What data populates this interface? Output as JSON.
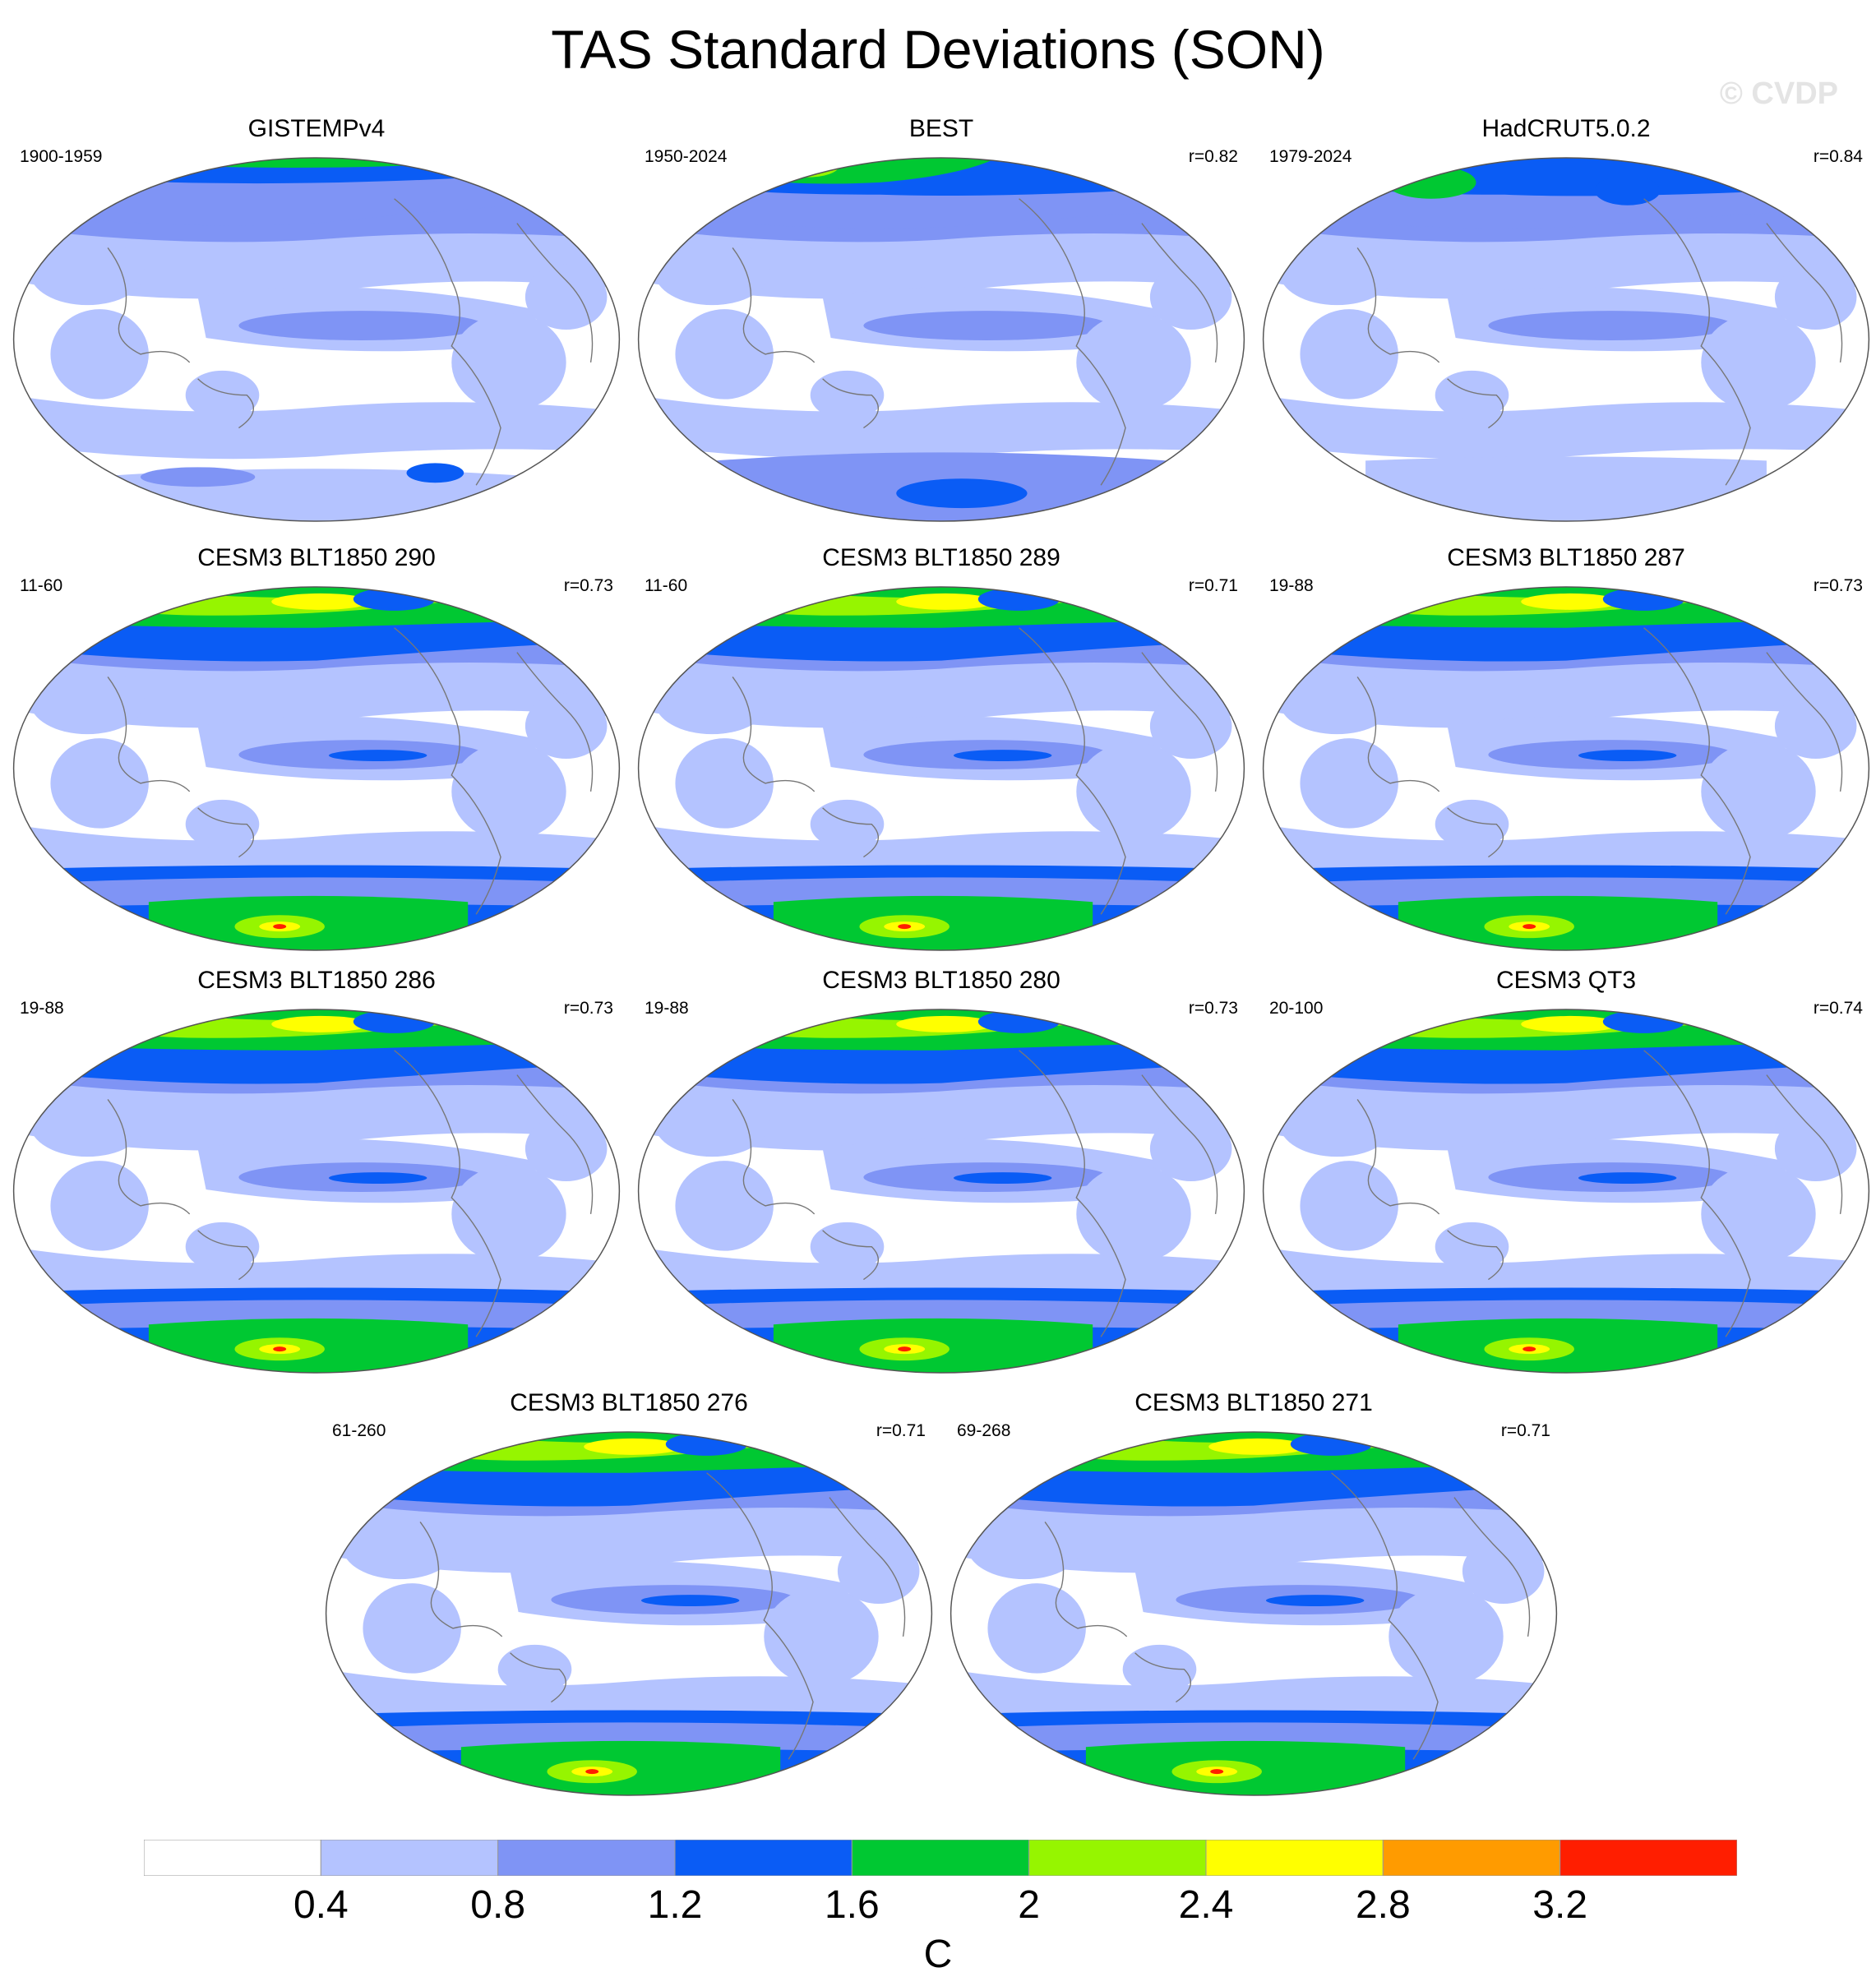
{
  "title": "TAS Standard Deviations (SON)",
  "watermark": "© CVDP",
  "panels": [
    {
      "title": "GISTEMPv4",
      "period": "1900-1959",
      "r": "",
      "variant": "obs1"
    },
    {
      "title": "BEST",
      "period": "1950-2024",
      "r": "r=0.82",
      "variant": "obs2"
    },
    {
      "title": "HadCRUT5.0.2",
      "period": "1979-2024",
      "r": "r=0.84",
      "variant": "obs3"
    },
    {
      "title": "CESM3 BLT1850 290",
      "period": "11-60",
      "r": "r=0.73",
      "variant": "model"
    },
    {
      "title": "CESM3 BLT1850 289",
      "period": "11-60",
      "r": "r=0.71",
      "variant": "model"
    },
    {
      "title": "CESM3 BLT1850 287",
      "period": "19-88",
      "r": "r=0.73",
      "variant": "model"
    },
    {
      "title": "CESM3 BLT1850 286",
      "period": "19-88",
      "r": "r=0.73",
      "variant": "model"
    },
    {
      "title": "CESM3 BLT1850 280",
      "period": "19-88",
      "r": "r=0.73",
      "variant": "model"
    },
    {
      "title": "CESM3 QT3",
      "period": "20-100",
      "r": "r=0.74",
      "variant": "model"
    },
    {
      "title": "CESM3 BLT1850 276",
      "period": "61-260",
      "r": "r=0.71",
      "variant": "model"
    },
    {
      "title": "CESM3 BLT1850 271",
      "period": "69-268",
      "r": "r=0.71",
      "variant": "model"
    }
  ],
  "colorbar": {
    "colors": [
      "#ffffff",
      "#b4c3ff",
      "#7f94f5",
      "#0a5cf5",
      "#00c832",
      "#96f500",
      "#ffff00",
      "#ff9b00",
      "#ff1e00"
    ],
    "labels": [
      "0.4",
      "0.8",
      "1.2",
      "1.6",
      "2",
      "2.4",
      "2.8",
      "3.2"
    ],
    "units": "C"
  }
}
